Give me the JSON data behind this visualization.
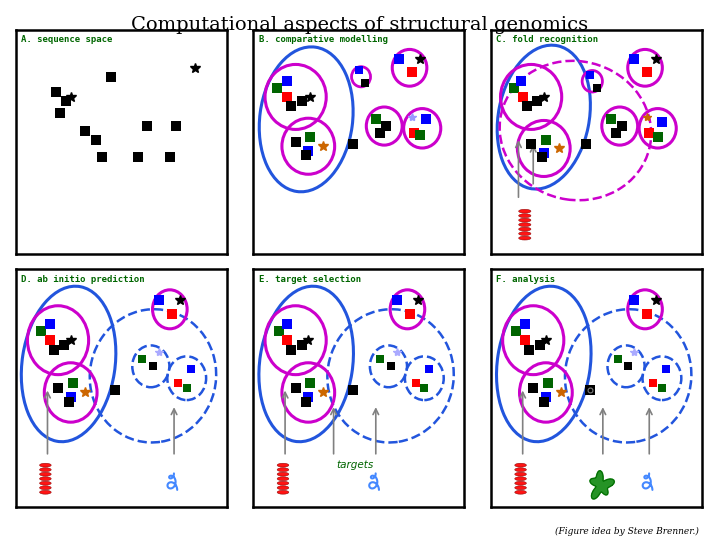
{
  "title": "Computational aspects of structural genomics",
  "footer": "(Figure idea by Steve Brenner.)",
  "panel_rects": {
    "A": [
      0.022,
      0.53,
      0.293,
      0.415
    ],
    "B": [
      0.352,
      0.53,
      0.293,
      0.415
    ],
    "C": [
      0.682,
      0.53,
      0.293,
      0.415
    ],
    "D": [
      0.022,
      0.062,
      0.293,
      0.44
    ],
    "E": [
      0.352,
      0.062,
      0.293,
      0.44
    ],
    "F": [
      0.682,
      0.062,
      0.293,
      0.44
    ]
  },
  "purple": "#cc00cc",
  "blue": "#2255dd",
  "green_label": "#006600",
  "dot_s": 22,
  "star_ms": 7
}
